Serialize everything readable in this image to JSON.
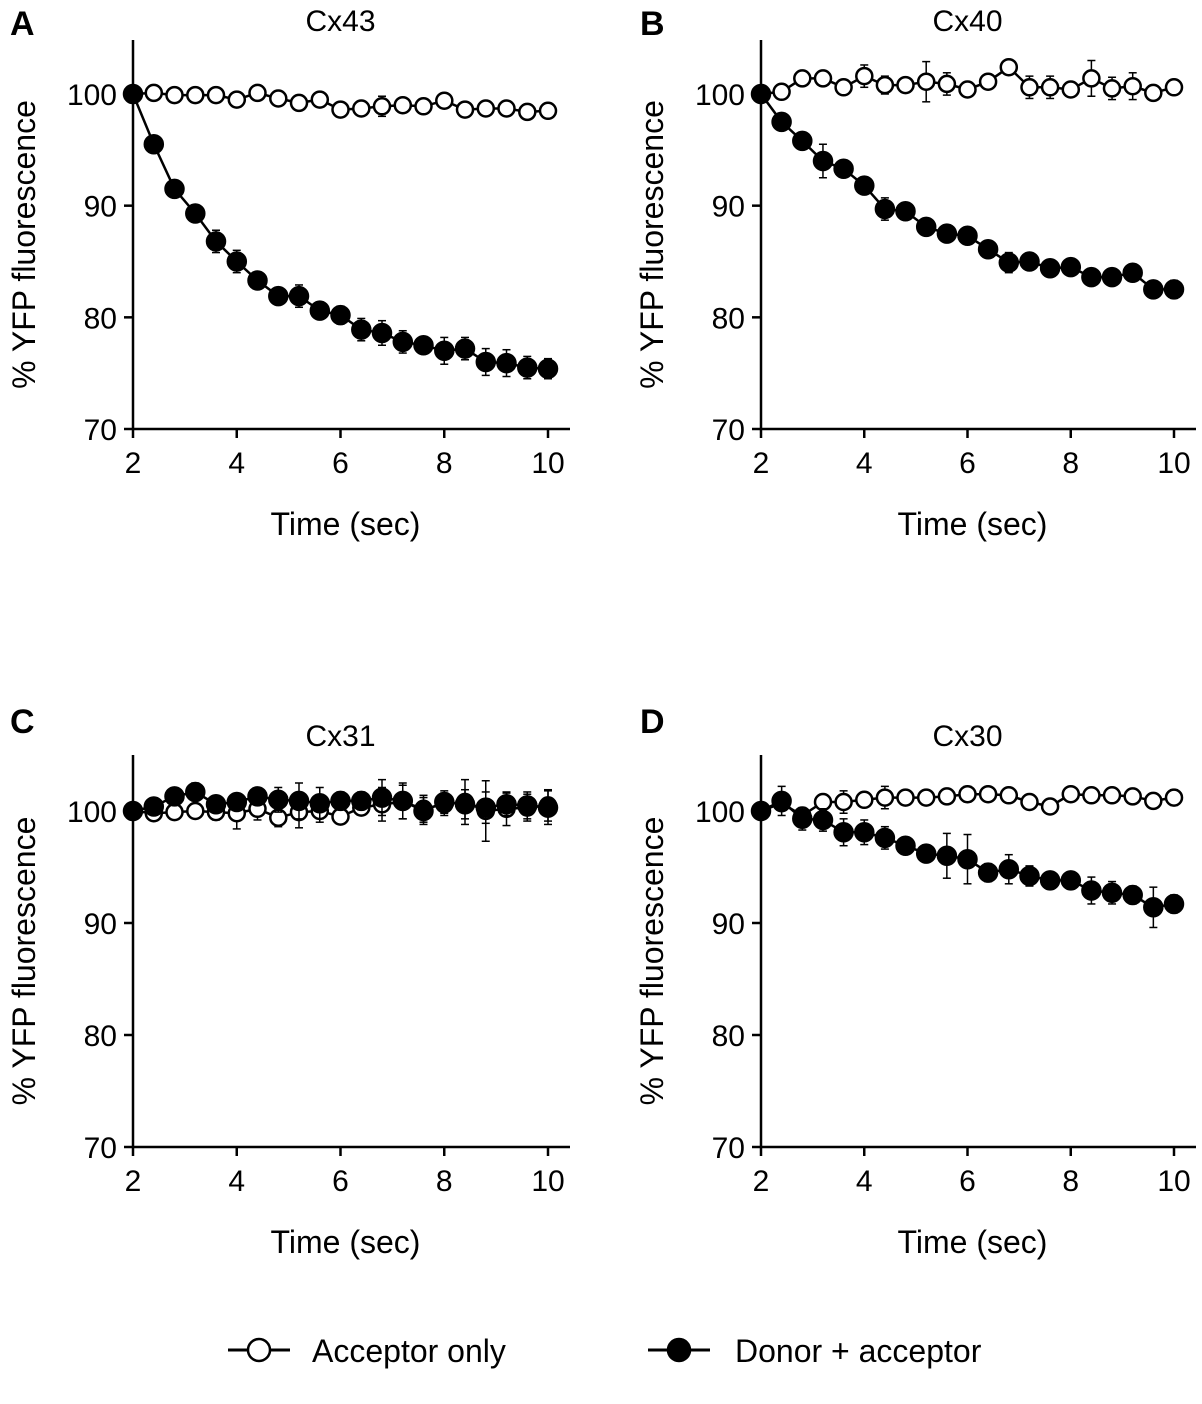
{
  "chart_data": [
    {
      "type": "line",
      "panel_letter": "A",
      "title": "Cx43",
      "xlabel": "Time (sec)",
      "ylabel": "% YFP fluorescence",
      "xlim": [
        2,
        10
      ],
      "ylim": [
        70,
        105
      ],
      "xticks": [
        2,
        4,
        6,
        8,
        10
      ],
      "yticks": [
        70,
        80,
        90,
        100
      ],
      "x": [
        2,
        2.4,
        2.8,
        3.2,
        3.6,
        4.0,
        4.4,
        4.8,
        5.2,
        5.6,
        6.0,
        6.4,
        6.8,
        7.2,
        7.6,
        8.0,
        8.4,
        8.8,
        9.2,
        9.6,
        10.0
      ],
      "series": [
        {
          "name": "Acceptor only",
          "marker": "open",
          "values": [
            100,
            100.1,
            99.9,
            99.9,
            99.9,
            99.5,
            100.1,
            99.6,
            99.2,
            99.5,
            98.6,
            98.7,
            98.9,
            99.0,
            98.9,
            99.4,
            98.6,
            98.7,
            98.7,
            98.4,
            98.5
          ],
          "errors": [
            0,
            0.3,
            0.3,
            0.3,
            0.3,
            0.3,
            0.3,
            0.3,
            0.3,
            0.3,
            0.4,
            0.4,
            0.9,
            0.4,
            0.4,
            0.3,
            0.4,
            0.3,
            0.3,
            0.3,
            0.3
          ]
        },
        {
          "name": "Donor + acceptor",
          "marker": "filled",
          "values": [
            100,
            95.5,
            91.5,
            89.3,
            86.8,
            85.0,
            83.3,
            81.9,
            81.9,
            80.6,
            80.2,
            78.9,
            78.6,
            77.8,
            77.5,
            77.0,
            77.2,
            76.0,
            75.9,
            75.5,
            75.4
          ],
          "errors": [
            0,
            0.3,
            0.3,
            0.5,
            1.0,
            1.0,
            0.6,
            0.6,
            1.0,
            0.5,
            0.8,
            1.0,
            1.1,
            1.0,
            0.7,
            1.2,
            1.0,
            1.2,
            1.2,
            1.0,
            0.9
          ]
        }
      ]
    },
    {
      "type": "line",
      "panel_letter": "B",
      "title": "Cx40",
      "xlabel": "Time (sec)",
      "ylabel": "% YFP fluorescence",
      "xlim": [
        2,
        10
      ],
      "ylim": [
        70,
        105
      ],
      "xticks": [
        2,
        4,
        6,
        8,
        10
      ],
      "yticks": [
        70,
        80,
        90,
        100
      ],
      "x": [
        2,
        2.4,
        2.8,
        3.2,
        3.6,
        4.0,
        4.4,
        4.8,
        5.2,
        5.6,
        6.0,
        6.4,
        6.8,
        7.2,
        7.6,
        8.0,
        8.4,
        8.8,
        9.2,
        9.6,
        10.0
      ],
      "series": [
        {
          "name": "Acceptor only",
          "marker": "open",
          "values": [
            100,
            100.2,
            101.4,
            101.4,
            100.6,
            101.6,
            100.8,
            100.8,
            101.1,
            100.9,
            100.4,
            101.1,
            102.4,
            100.6,
            100.6,
            100.4,
            101.4,
            100.5,
            100.7,
            100.1,
            100.6
          ],
          "errors": [
            0,
            0.3,
            0.4,
            0.3,
            0.5,
            1.0,
            0.8,
            0.3,
            1.8,
            1.0,
            0.4,
            0.5,
            0.4,
            1.0,
            1.0,
            0.5,
            1.6,
            1.0,
            1.2,
            0.4,
            0.5
          ]
        },
        {
          "name": "Donor + acceptor",
          "marker": "filled",
          "values": [
            100,
            97.5,
            95.8,
            94.0,
            93.3,
            91.8,
            89.7,
            89.5,
            88.1,
            87.5,
            87.3,
            86.1,
            84.9,
            85.0,
            84.4,
            84.5,
            83.6,
            83.6,
            84.0,
            82.5,
            82.5
          ],
          "errors": [
            0,
            0.4,
            0.5,
            1.5,
            0.5,
            0.5,
            1.0,
            0.6,
            0.5,
            0.5,
            0.5,
            0.6,
            0.9,
            0.5,
            0.7,
            0.7,
            0.6,
            0.7,
            0.6,
            0.7,
            0.8
          ]
        }
      ]
    },
    {
      "type": "line",
      "panel_letter": "C",
      "title": "Cx31",
      "xlabel": "Time (sec)",
      "ylabel": "% YFP fluorescence",
      "xlim": [
        2,
        10
      ],
      "ylim": [
        70,
        105
      ],
      "xticks": [
        2,
        4,
        6,
        8,
        10
      ],
      "yticks": [
        70,
        80,
        90,
        100
      ],
      "x": [
        2,
        2.4,
        2.8,
        3.2,
        3.6,
        4.0,
        4.4,
        4.8,
        5.2,
        5.6,
        6.0,
        6.4,
        6.8,
        7.2,
        7.6,
        8.0,
        8.4,
        8.8,
        9.2,
        9.6,
        10.0
      ],
      "series": [
        {
          "name": "Acceptor only",
          "marker": "open",
          "values": [
            100,
            99.8,
            99.9,
            100.0,
            99.9,
            99.8,
            100.2,
            99.4,
            99.9,
            100.0,
            99.5,
            100.3,
            100.6,
            100.8,
            100.2,
            100.6,
            100.8,
            100.0,
            100.2,
            100.3,
            100.5
          ],
          "errors": [
            0,
            0.4,
            0.5,
            0.5,
            0.7,
            1.4,
            1.0,
            0.8,
            1.4,
            1.0,
            0.5,
            0.5,
            1.5,
            1.5,
            1.2,
            1.0,
            2.0,
            2.7,
            1.5,
            1.2,
            1.4
          ]
        },
        {
          "name": "Donor + acceptor",
          "marker": "filled",
          "values": [
            100,
            100.4,
            101.3,
            101.7,
            100.6,
            100.8,
            101.3,
            101.0,
            100.9,
            100.7,
            100.9,
            100.9,
            101.2,
            100.9,
            100.0,
            100.8,
            100.6,
            100.3,
            100.6,
            100.5,
            100.3
          ],
          "errors": [
            0,
            0.5,
            0.6,
            0.8,
            0.6,
            0.5,
            0.7,
            1.1,
            1.6,
            1.4,
            0.8,
            0.8,
            1.6,
            1.6,
            1.2,
            1.0,
            1.3,
            1.4,
            1.0,
            1.2,
            1.5
          ]
        }
      ]
    },
    {
      "type": "line",
      "panel_letter": "D",
      "title": "Cx30",
      "xlabel": "Time (sec)",
      "ylabel": "% YFP fluorescence",
      "xlim": [
        2,
        10
      ],
      "ylim": [
        70,
        105
      ],
      "xticks": [
        2,
        4,
        6,
        8,
        10
      ],
      "yticks": [
        70,
        80,
        90,
        100
      ],
      "x": [
        2,
        2.4,
        2.8,
        3.2,
        3.6,
        4.0,
        4.4,
        4.8,
        5.2,
        5.6,
        6.0,
        6.4,
        6.8,
        7.2,
        7.6,
        8.0,
        8.4,
        8.8,
        9.2,
        9.6,
        10.0
      ],
      "series": [
        {
          "name": "Acceptor only",
          "marker": "open",
          "values": [
            100,
            100.7,
            99.6,
            100.8,
            100.8,
            101.0,
            101.2,
            101.2,
            101.2,
            101.3,
            101.5,
            101.5,
            101.4,
            100.8,
            100.4,
            101.5,
            101.4,
            101.4,
            101.3,
            100.9,
            101.2
          ],
          "errors": [
            0,
            0.5,
            0.5,
            0.5,
            1.0,
            0.6,
            1.0,
            0.6,
            0.6,
            0.6,
            0.7,
            0.5,
            0.5,
            0.5,
            0.6,
            0.5,
            0.5,
            0.5,
            0.5,
            0.5,
            0.7
          ]
        },
        {
          "name": "Donor + acceptor",
          "marker": "filled",
          "values": [
            100,
            100.9,
            99.3,
            99.2,
            98.1,
            98.1,
            97.6,
            96.9,
            96.2,
            96.0,
            95.7,
            94.5,
            94.8,
            94.2,
            93.8,
            93.8,
            92.9,
            92.7,
            92.5,
            91.4,
            91.7
          ],
          "errors": [
            0,
            1.3,
            1.0,
            1.0,
            1.2,
            1.1,
            1.0,
            0.6,
            0.7,
            2.0,
            2.2,
            0.8,
            1.3,
            0.9,
            0.5,
            0.6,
            1.2,
            1.0,
            0.8,
            1.8,
            0.8
          ]
        }
      ]
    }
  ],
  "legend": {
    "items": [
      {
        "label": "Acceptor only",
        "marker": "open"
      },
      {
        "label": "Donor + acceptor",
        "marker": "filled"
      }
    ]
  }
}
